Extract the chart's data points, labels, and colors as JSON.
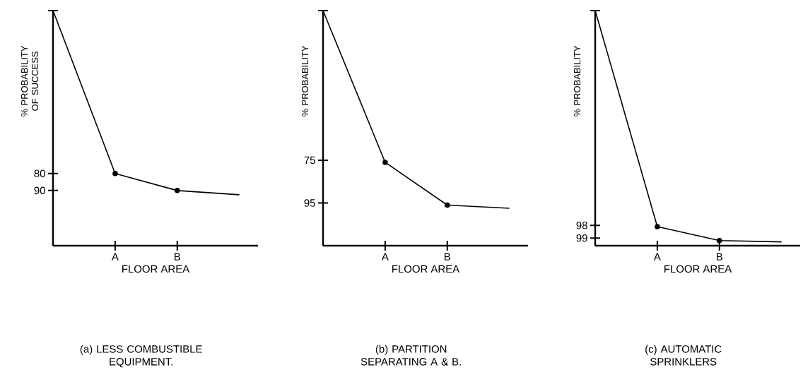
{
  "chart_data": [
    {
      "type": "line",
      "title": "(a) LESS COMBUSTIBLE EQUIPMENT.",
      "xlabel": "FLOOR AREA",
      "ylabel": "% PROBABILITY OF SUCCESS",
      "categories": [
        null,
        "A",
        "B",
        null
      ],
      "series": [
        {
          "color": "#000000",
          "values": [
            -16,
            80,
            90,
            92.5
          ]
        }
      ],
      "ylim": [
        122.5,
        -16
      ],
      "yticks": [
        {
          "value": -16,
          "label": null
        },
        80,
        90
      ],
      "marker": "circle",
      "line_style": "solid"
    },
    {
      "type": "line",
      "title": "(b) PARTITION SEPARATING A & B.",
      "xlabel": "FLOOR AREA",
      "ylabel": "% PROBABILITY",
      "categories": [
        null,
        "A",
        "B",
        null
      ],
      "series": [
        {
          "color": "#000000",
          "values": [
            5,
            76,
            96,
            97.5
          ]
        }
      ],
      "ylim": [
        115,
        5
      ],
      "yticks": [
        {
          "value": 5,
          "label": null
        },
        75,
        95
      ],
      "marker": "circle",
      "line_style": "solid"
    },
    {
      "type": "line",
      "title": "(c) AUTOMATIC SPRINKLERS",
      "xlabel": "FLOOR AREA",
      "ylabel": "% PROBABILITY",
      "categories": [
        null,
        "A",
        "B",
        null
      ],
      "series": [
        {
          "color": "#000000",
          "values": [
            81.1,
            98.1,
            99.2,
            99.3
          ]
        }
      ],
      "ylim": [
        99.6,
        81.1
      ],
      "yticks": [
        {
          "value": 81.1,
          "label": null
        },
        98,
        99
      ],
      "marker": "circle",
      "line_style": "solid"
    }
  ]
}
